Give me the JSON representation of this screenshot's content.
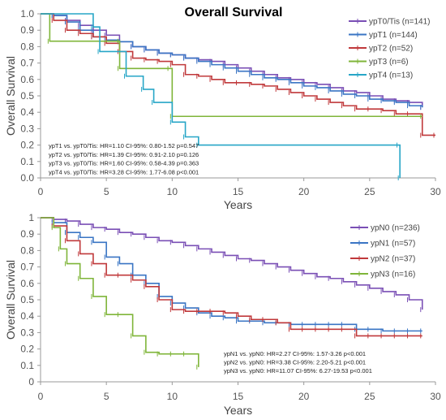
{
  "chart_data": [
    {
      "type": "line",
      "title": "Overall Survival",
      "xlabel": "Years",
      "ylabel": "Overall Survival",
      "xlim": [
        0,
        30
      ],
      "ylim": [
        0,
        1
      ],
      "x_ticks": [
        "0",
        "5",
        "10",
        "15",
        "20",
        "25",
        "30"
      ],
      "y_ticks": [
        "0.0",
        "0.1",
        "0.2",
        "0.3",
        "0.4",
        "0.5",
        "0.6",
        "0.7",
        "0.8",
        "0.9",
        "1.0"
      ],
      "grid": false,
      "legend_position": "top-right",
      "series": [
        {
          "name": "ypT0/Tis (n=141)",
          "color": "#7a4fb5",
          "x": [
            0,
            1,
            2,
            3,
            4,
            5,
            6,
            7,
            8,
            9,
            10,
            11,
            12,
            13,
            14,
            15,
            16,
            17,
            18,
            19,
            20,
            21,
            22,
            23,
            24,
            25,
            26,
            27,
            28,
            29
          ],
          "y": [
            1.0,
            0.99,
            0.96,
            0.93,
            0.9,
            0.87,
            0.83,
            0.8,
            0.78,
            0.76,
            0.75,
            0.73,
            0.72,
            0.71,
            0.69,
            0.67,
            0.65,
            0.63,
            0.61,
            0.6,
            0.58,
            0.57,
            0.55,
            0.53,
            0.52,
            0.5,
            0.48,
            0.47,
            0.46,
            0.43
          ]
        },
        {
          "name": "ypT1 (n=144)",
          "color": "#3a75c4",
          "x": [
            0,
            1,
            2,
            3,
            4,
            5,
            6,
            7,
            8,
            9,
            10,
            11,
            12,
            13,
            14,
            15,
            16,
            17,
            18,
            19,
            20,
            21,
            22,
            23,
            24,
            25,
            26,
            27,
            28,
            29
          ],
          "y": [
            1.0,
            0.99,
            0.95,
            0.9,
            0.86,
            0.84,
            0.83,
            0.8,
            0.78,
            0.76,
            0.75,
            0.73,
            0.71,
            0.69,
            0.67,
            0.65,
            0.63,
            0.61,
            0.6,
            0.58,
            0.56,
            0.55,
            0.53,
            0.51,
            0.5,
            0.48,
            0.47,
            0.46,
            0.44,
            0.43
          ]
        },
        {
          "name": "ypT2 (n=52)",
          "color": "#c0393b",
          "x": [
            0,
            1,
            2,
            3,
            4,
            5,
            6,
            7,
            8,
            9,
            10,
            11,
            12,
            13,
            14,
            15,
            16,
            17,
            18,
            19,
            20,
            21,
            22,
            23,
            24,
            25,
            26,
            27,
            28,
            29,
            30
          ],
          "y": [
            1.0,
            0.96,
            0.9,
            0.88,
            0.86,
            0.82,
            0.77,
            0.73,
            0.72,
            0.71,
            0.69,
            0.63,
            0.62,
            0.6,
            0.58,
            0.58,
            0.57,
            0.56,
            0.54,
            0.52,
            0.5,
            0.48,
            0.46,
            0.44,
            0.42,
            0.42,
            0.41,
            0.39,
            0.39,
            0.26,
            0.26
          ]
        },
        {
          "name": "ypT3 (n=6)",
          "color": "#7fb539",
          "x": [
            0,
            0.7,
            6,
            6.01,
            9.8,
            10,
            29
          ],
          "y": [
            1.0,
            0.833,
            0.833,
            0.667,
            0.667,
            0.375,
            0.375
          ]
        },
        {
          "name": "ypT4 (n=13)",
          "color": "#27a6c7",
          "x": [
            0,
            4,
            4.5,
            6.5,
            7.8,
            8.6,
            10,
            11,
            12,
            27.2,
            27.3
          ],
          "y": [
            1.0,
            0.92,
            0.77,
            0.62,
            0.54,
            0.46,
            0.34,
            0.25,
            0.2,
            0.2,
            0.0
          ]
        }
      ],
      "annotations": [
        "ypT1 vs. ypT0/Tis: HR=1.10 CI-95%: 0.80-1.52 p=0.547",
        "ypT2 vs. ypT0/Tis: HR=1.39 CI-95%: 0.91-2.10 p=0.126",
        "ypT3 vs. ypT0/Tis: HR=1.60 CI-95%: 0.58-4.39 p=0.363",
        "ypT4 vs. ypT0/Tis: HR=3.28 CI-95%: 1.77-6.08 p<0.001"
      ]
    },
    {
      "type": "line",
      "title": "",
      "xlabel": "Years",
      "ylabel": "Overall Survival",
      "xlim": [
        0,
        30
      ],
      "ylim": [
        0,
        1
      ],
      "x_ticks": [
        "0",
        "5",
        "10",
        "15",
        "20",
        "25",
        "30"
      ],
      "y_ticks": [
        "0",
        "0.1",
        "0.2",
        "0.3",
        "0.4",
        "0.5",
        "0.6",
        "0.7",
        "0.8",
        "0.9",
        "1"
      ],
      "grid": false,
      "legend_position": "top-right",
      "series": [
        {
          "name": "ypN0 (n=236)",
          "color": "#7a4fb5",
          "x": [
            0,
            1,
            2,
            3,
            4,
            5,
            6,
            7,
            8,
            9,
            10,
            11,
            12,
            13,
            14,
            15,
            16,
            17,
            18,
            19,
            20,
            21,
            22,
            23,
            24,
            25,
            26,
            27,
            28,
            29
          ],
          "y": [
            1.0,
            0.99,
            0.98,
            0.96,
            0.94,
            0.93,
            0.91,
            0.9,
            0.88,
            0.86,
            0.85,
            0.83,
            0.81,
            0.79,
            0.77,
            0.75,
            0.74,
            0.72,
            0.7,
            0.68,
            0.66,
            0.64,
            0.63,
            0.61,
            0.59,
            0.57,
            0.55,
            0.53,
            0.5,
            0.44
          ]
        },
        {
          "name": "ypN1 (n=57)",
          "color": "#3a75c4",
          "x": [
            0,
            1,
            2,
            3,
            4,
            5,
            6,
            7,
            8,
            9,
            10,
            11,
            12,
            13,
            14,
            15,
            16,
            17,
            18,
            19,
            20,
            21,
            22,
            23,
            24,
            25,
            26,
            27,
            28,
            29
          ],
          "y": [
            1.0,
            0.97,
            0.91,
            0.88,
            0.85,
            0.76,
            0.72,
            0.65,
            0.6,
            0.52,
            0.48,
            0.45,
            0.42,
            0.4,
            0.39,
            0.37,
            0.37,
            0.36,
            0.36,
            0.35,
            0.35,
            0.35,
            0.35,
            0.35,
            0.32,
            0.32,
            0.31,
            0.31,
            0.31,
            0.31
          ]
        },
        {
          "name": "ypN2 (n=37)",
          "color": "#c0393b",
          "x": [
            0,
            1,
            2,
            3,
            4,
            5,
            6,
            7,
            8,
            9,
            10,
            11,
            12,
            13,
            14,
            15,
            16,
            17,
            18,
            19,
            20,
            21,
            22,
            23,
            24,
            25,
            26,
            27,
            28,
            29
          ],
          "y": [
            1.0,
            0.95,
            0.86,
            0.78,
            0.72,
            0.65,
            0.65,
            0.62,
            0.58,
            0.5,
            0.44,
            0.43,
            0.43,
            0.43,
            0.42,
            0.4,
            0.38,
            0.38,
            0.36,
            0.32,
            0.32,
            0.32,
            0.32,
            0.32,
            0.28,
            0.28,
            0.28,
            0.28,
            0.28,
            0.28
          ]
        },
        {
          "name": "ypN3 (n=16)",
          "color": "#7fb539",
          "x": [
            0,
            1,
            1.5,
            2,
            3,
            4,
            5,
            6,
            7,
            8,
            9,
            10,
            11,
            12
          ],
          "y": [
            1.0,
            0.94,
            0.81,
            0.72,
            0.63,
            0.52,
            0.41,
            0.41,
            0.28,
            0.18,
            0.17,
            0.17,
            0.17,
            0.09
          ]
        }
      ],
      "annotations": [
        "ypN1 vs. ypN0: HR=2.27 CI-95%: 1.57-3.26 p<0.001",
        "ypN2 vs. ypN0: HR=3.38 CI-95%: 2.20-5.21 p<0.001",
        "ypN3 vs. ypN0: HR=11.07 CI-95%: 6.27-19.53 p<0.001"
      ]
    }
  ]
}
